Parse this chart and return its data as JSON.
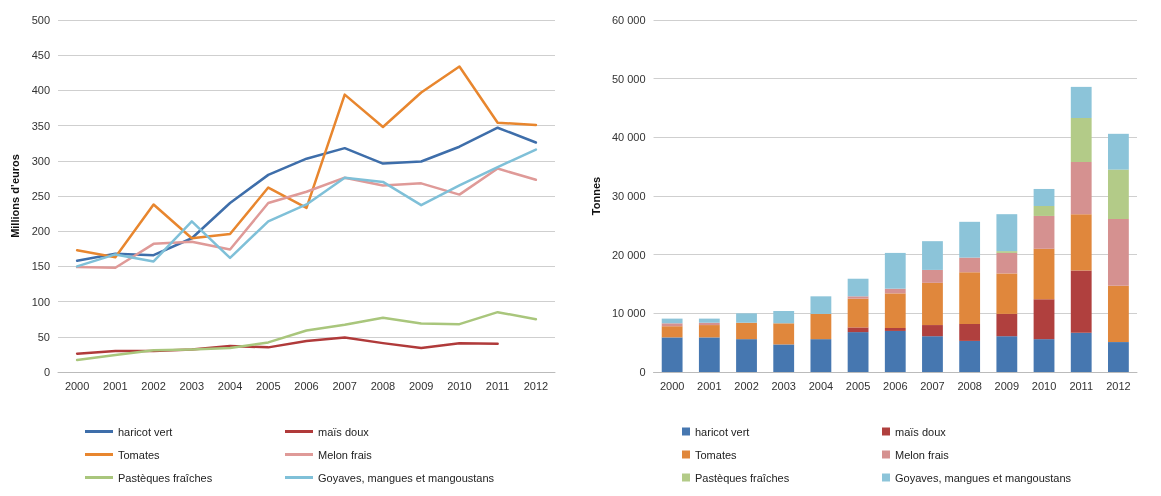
{
  "chart_data": [
    {
      "type": "line",
      "ylabel": "Millions d’euros",
      "categories": [
        "2000",
        "2001",
        "2002",
        "2003",
        "2004",
        "2005",
        "2006",
        "2007",
        "2008",
        "2009",
        "2010",
        "2011",
        "2012"
      ],
      "ylim": [
        0,
        500
      ],
      "yticks": [
        0,
        50,
        100,
        150,
        200,
        250,
        300,
        350,
        400,
        450,
        500
      ],
      "grid": "y",
      "legend": "bottom",
      "marker": "none",
      "line_style": "solid",
      "series": [
        {
          "name": "haricot vert",
          "color": "#3e6eaa",
          "values": [
            158,
            168,
            166,
            190,
            240,
            280,
            303,
            318,
            296,
            299,
            320,
            347,
            326
          ]
        },
        {
          "name": "maïs doux",
          "color": "#b03a3a",
          "values": [
            26,
            30,
            30,
            32,
            37,
            35,
            44,
            49,
            41,
            34,
            41,
            40,
            null
          ]
        },
        {
          "name": "Tomates",
          "color": "#e8862e",
          "values": [
            173,
            163,
            238,
            190,
            196,
            262,
            233,
            394,
            348,
            397,
            434,
            354,
            351
          ]
        },
        {
          "name": "Melon frais",
          "color": "#df9a98",
          "values": [
            149,
            148,
            182,
            185,
            174,
            240,
            256,
            276,
            265,
            268,
            252,
            289,
            273
          ]
        },
        {
          "name": "Pastèques fraîches",
          "color": "#a9c67c",
          "values": [
            17,
            24,
            31,
            32,
            34,
            42,
            59,
            67,
            77,
            69,
            68,
            85,
            75
          ]
        },
        {
          "name": "Goyaves, mangues et mangoustans",
          "color": "#7fc0d8",
          "values": [
            150,
            167,
            157,
            214,
            162,
            214,
            238,
            276,
            270,
            237,
            265,
            291,
            316
          ]
        }
      ]
    },
    {
      "type": "bar",
      "stacked": true,
      "ylabel": "Tonnes",
      "categories": [
        "2000",
        "2001",
        "2002",
        "2003",
        "2004",
        "2005",
        "2006",
        "2007",
        "2008",
        "2009",
        "2010",
        "2011",
        "2012"
      ],
      "ylim": [
        0,
        60000
      ],
      "yticks": [
        {
          "value": 0,
          "label": "0"
        },
        {
          "value": 10000,
          "label": "10 000"
        },
        {
          "value": 20000,
          "label": "20 000"
        },
        {
          "value": 30000,
          "label": "30 000"
        },
        {
          "value": 40000,
          "label": "40 000"
        },
        {
          "value": 50000,
          "label": "50 000"
        },
        {
          "value": 60000,
          "label": "60 000"
        }
      ],
      "grid": "y",
      "legend": "bottom",
      "series": [
        {
          "name": "haricot vert",
          "color": "#4677b0",
          "values": [
            5900,
            5900,
            5600,
            4700,
            5600,
            6800,
            7000,
            6100,
            5300,
            6100,
            5600,
            6700,
            5100
          ]
        },
        {
          "name": "maïs doux",
          "color": "#b0403e",
          "values": [
            0,
            0,
            0,
            0,
            0,
            800,
            500,
            1900,
            2900,
            3800,
            6800,
            10600,
            0
          ]
        },
        {
          "name": "Tomates",
          "color": "#e0873c",
          "values": [
            1900,
            2100,
            2800,
            3600,
            4300,
            4900,
            5900,
            7200,
            8800,
            6900,
            8600,
            9600,
            9600
          ]
        },
        {
          "name": "Melon frais",
          "color": "#d59190",
          "values": [
            500,
            400,
            0,
            0,
            0,
            400,
            800,
            2200,
            2500,
            3500,
            5600,
            8900,
            11400
          ]
        },
        {
          "name": "Pastèques fraîches",
          "color": "#b3cb88",
          "values": [
            0,
            0,
            0,
            0,
            0,
            0,
            0,
            0,
            0,
            300,
            1700,
            7500,
            8400
          ]
        },
        {
          "name": "Goyaves, mangues et mangoustans",
          "color": "#8cc4d9",
          "values": [
            800,
            700,
            1600,
            2100,
            3000,
            3000,
            6100,
            4900,
            6100,
            6300,
            2900,
            5300,
            6100
          ]
        }
      ]
    }
  ]
}
